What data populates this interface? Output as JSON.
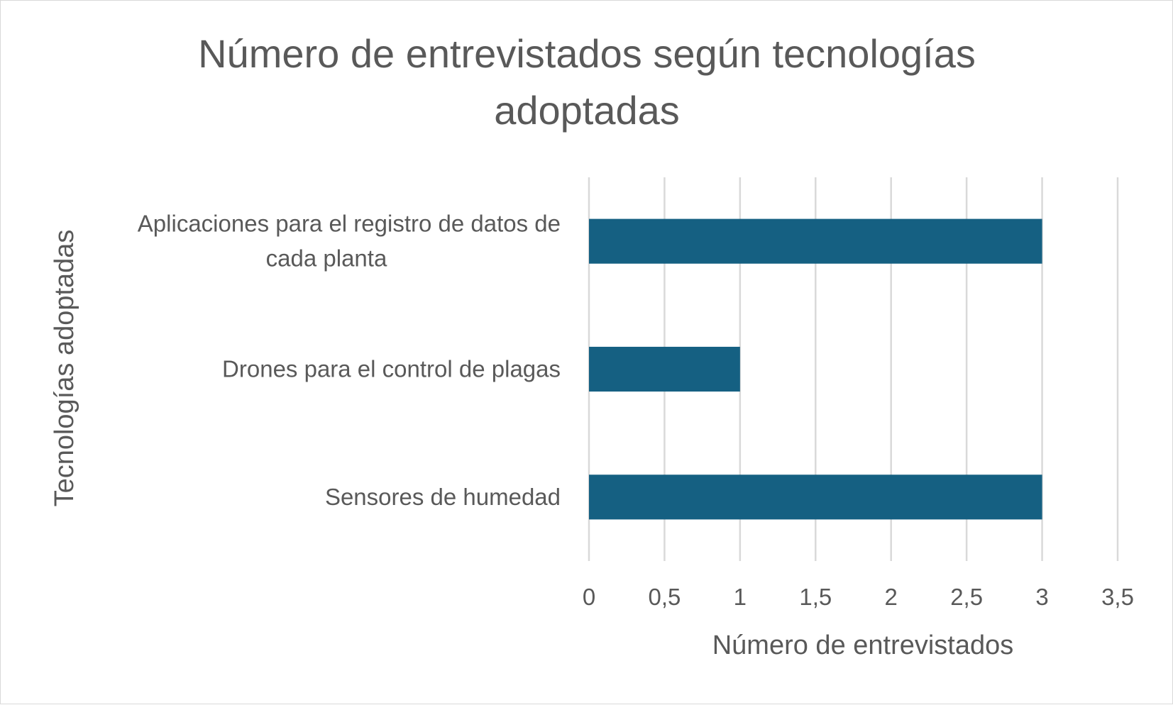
{
  "chart_data": {
    "type": "bar",
    "orientation": "horizontal",
    "title_lines": [
      "Número de entrevistados según tecnologías",
      "adoptadas"
    ],
    "xlabel": "Número de entrevistados",
    "ylabel": "Tecnologías adoptadas",
    "categories": [
      [
        "Aplicaciones para el registro de datos de",
        "cada planta"
      ],
      [
        "Drones para el control de plagas"
      ],
      [
        "Sensores de humedad"
      ]
    ],
    "values": [
      3,
      1,
      3
    ],
    "xlim": [
      0,
      3.5
    ],
    "ticks": [
      0,
      0.5,
      1,
      1.5,
      2,
      2.5,
      3,
      3.5
    ],
    "tick_labels": [
      "0",
      "0,5",
      "1",
      "1,5",
      "2",
      "2,5",
      "3",
      "3,5"
    ],
    "grid": true,
    "legend": "none",
    "colors": {
      "bar": "#156082",
      "grid": "#d9d9d9",
      "text": "#595959"
    }
  }
}
